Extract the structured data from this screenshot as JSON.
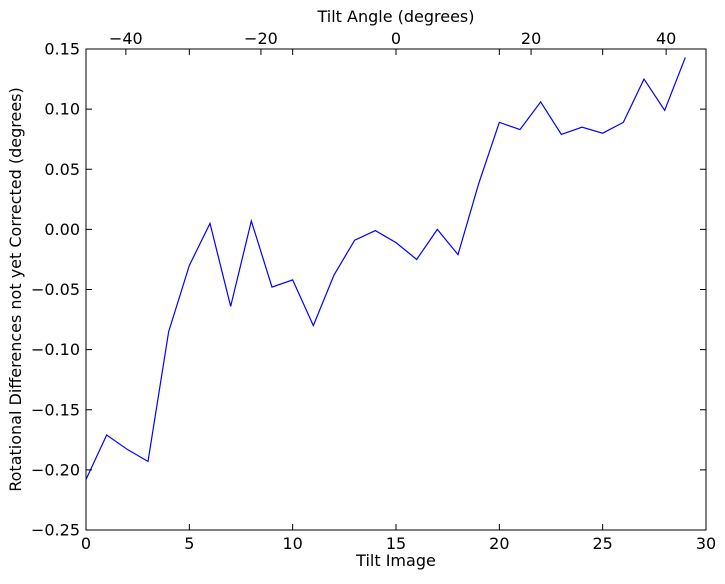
{
  "chart_data": {
    "type": "line",
    "title": "",
    "xlabel": "Tilt Image",
    "ylabel": "Rotational Differences not yet Corrected (degrees)",
    "top_xlabel": "Tilt Angle (degrees)",
    "xlim": [
      0,
      30
    ],
    "ylim": [
      -0.25,
      0.15
    ],
    "top_xlim": [
      -45.9,
      45.9
    ],
    "xticks": [
      0,
      5,
      10,
      15,
      20,
      25,
      30
    ],
    "xtick_labels": [
      "0",
      "5",
      "10",
      "15",
      "20",
      "25",
      "30"
    ],
    "yticks": [
      -0.25,
      -0.2,
      -0.15,
      -0.1,
      -0.05,
      0.0,
      0.05,
      0.1,
      0.15
    ],
    "ytick_labels": [
      "−0.25",
      "−0.20",
      "−0.15",
      "−0.10",
      "−0.05",
      "0.00",
      "0.05",
      "0.10",
      "0.15"
    ],
    "top_xticks": [
      -40,
      -20,
      0,
      20,
      40
    ],
    "top_xtick_labels": [
      "−40",
      "−20",
      "0",
      "20",
      "40"
    ],
    "grid": false,
    "line_color": "#0000ff",
    "x": [
      0,
      1,
      2,
      3,
      4,
      5,
      6,
      7,
      8,
      9,
      10,
      11,
      12,
      13,
      14,
      15,
      16,
      17,
      18,
      19,
      20,
      21,
      22,
      23,
      24,
      25,
      26,
      27,
      28,
      29
    ],
    "y": [
      -0.208,
      -0.171,
      -0.183,
      -0.193,
      -0.085,
      -0.03,
      0.005,
      -0.064,
      0.007,
      -0.048,
      -0.042,
      -0.08,
      -0.038,
      -0.009,
      -0.001,
      -0.011,
      -0.025,
      0.0,
      -0.021,
      0.038,
      0.089,
      0.083,
      0.106,
      0.079,
      0.085,
      0.08,
      0.089,
      0.125,
      0.099,
      0.143
    ]
  }
}
